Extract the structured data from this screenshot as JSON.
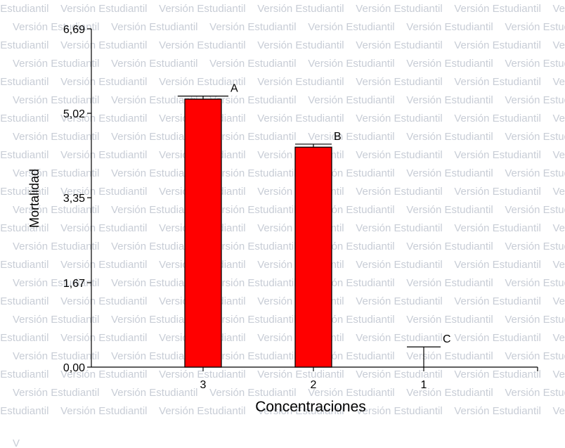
{
  "watermark": {
    "text": "Versión Estudiantil",
    "trailing_fragment": "V"
  },
  "chart_data": {
    "type": "bar",
    "xlabel": "Concentraciones",
    "ylabel": "Mortalidad",
    "categories": [
      "3",
      "2",
      "1"
    ],
    "values": [
      5.3,
      4.35,
      0
    ],
    "errors": [
      0.06,
      0.06,
      0.4
    ],
    "group_letters": [
      "A",
      "B",
      "C"
    ],
    "ylim": [
      0,
      6.69
    ],
    "yticks": [
      0,
      1.67,
      3.35,
      5.02,
      6.69
    ],
    "ytick_labels": [
      "0,00",
      "1,67",
      "3,35",
      "5,02",
      "6,69"
    ],
    "bar_color": "#ff0000",
    "grid": false
  }
}
